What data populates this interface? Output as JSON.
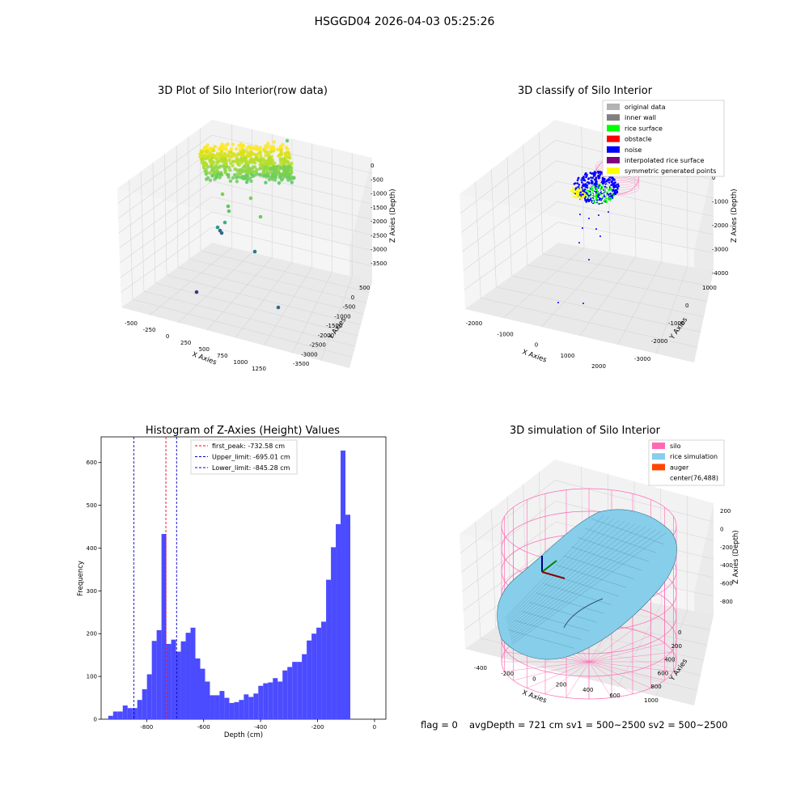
{
  "suptitle": "HSGGD04 2026-04-03 05:25:26",
  "colors": {
    "pane_wall": "#f2f2f2",
    "pane_floor": "#eaeaea",
    "grid": "#d6d6d6",
    "hist_bar": "#4b4bff",
    "first_peak_line": "#ff0000",
    "limit_line": "#0000cc",
    "silo_wire": "#ff69b4",
    "rice_surface": "#87ceeb"
  },
  "panel1": {
    "title": "3D Plot of Silo Interior(row data)",
    "xlabel": "X Axies",
    "ylabel": "Y Axies",
    "zlabel": "Z Axies (Depth)",
    "xticks": [
      "-500",
      "-250",
      "0",
      "250",
      "500",
      "750",
      "1000",
      "1250"
    ],
    "yticks": [
      "500",
      "0",
      "-500",
      "-1000",
      "-1500",
      "-2000",
      "-2500",
      "-3000",
      "-3500"
    ],
    "zticks": [
      "0",
      "-500",
      "-1000",
      "-1500",
      "-2000",
      "-2500",
      "-3000",
      "-3500"
    ]
  },
  "panel2": {
    "title": "3D classify of Silo Interior",
    "xlabel": "X Axies",
    "ylabel": "Y Axies",
    "zlabel": "Z Axies (Depth)",
    "xticks": [
      "-2000",
      "-1000",
      "0",
      "1000",
      "2000"
    ],
    "yticks": [
      "1000",
      "0",
      "-1000",
      "-2000",
      "-3000"
    ],
    "zticks": [
      "0",
      "-1000",
      "-2000",
      "-3000",
      "-4000"
    ],
    "legend": [
      {
        "label": "original data",
        "color": "#b3b3b3"
      },
      {
        "label": "inner wall",
        "color": "#808080"
      },
      {
        "label": "rice surface",
        "color": "#00ff00"
      },
      {
        "label": "obstacle",
        "color": "#ff0000"
      },
      {
        "label": "noise",
        "color": "#0000ff"
      },
      {
        "label": "interpolated rice surface",
        "color": "#800080"
      },
      {
        "label": "symmetric generated points",
        "color": "#ffff00"
      }
    ]
  },
  "panel4": {
    "title": "3D simulation of Silo Interior",
    "xlabel": "X Axies",
    "ylabel": "Y Axies",
    "zlabel": "Z Axies (Depth)",
    "xticks": [
      "-400",
      "-200",
      "0",
      "200",
      "400",
      "600"
    ],
    "yticks": [
      "0",
      "200",
      "400",
      "600",
      "800",
      "1000"
    ],
    "zticks": [
      "200",
      "0",
      "-200",
      "-400",
      "-600",
      "-800"
    ],
    "legend": [
      {
        "label": "silo",
        "color": "#ff69b4"
      },
      {
        "label": "rice simulation",
        "color": "#87ceeb"
      },
      {
        "label": "auger",
        "color": "#ff4500"
      },
      {
        "label": "center(76,488)",
        "color": ""
      }
    ]
  },
  "chart_data": {
    "type": "bar",
    "title": "Histogram of Z-Axies (Height) Values",
    "xlabel": "Depth (cm)",
    "ylabel": "Frequency",
    "xlim": [
      -960,
      40
    ],
    "ylim": [
      0,
      660
    ],
    "xticks": [
      -800,
      -600,
      -400,
      -200,
      0
    ],
    "yticks": [
      0,
      100,
      200,
      300,
      400,
      500,
      600
    ],
    "bin_width": 17.0,
    "bin_start": -935,
    "values": [
      8,
      18,
      18,
      32,
      26,
      26,
      45,
      70,
      105,
      183,
      208,
      433,
      176,
      186,
      158,
      182,
      202,
      214,
      142,
      118,
      88,
      56,
      56,
      66,
      50,
      38,
      40,
      45,
      58,
      52,
      60,
      78,
      84,
      86,
      96,
      88,
      114,
      122,
      134,
      134,
      152,
      184,
      200,
      214,
      228,
      326,
      402,
      456,
      628,
      478
    ],
    "lines": [
      {
        "label": "first_peak: -732.58 cm",
        "x": -732.58,
        "color": "#ff0000"
      },
      {
        "label": "Upper_limit: -695.01 cm",
        "x": -695.01,
        "color": "#0000cc"
      },
      {
        "label": "Lower_limit: -845.28 cm",
        "x": -845.28,
        "color": "#0000cc"
      }
    ],
    "legend_position": "upper-center"
  },
  "footer": {
    "flag": "flag = 0",
    "avg": "avgDepth = 721 cm  sv1 = 500~2500  sv2 = 500~2500"
  }
}
